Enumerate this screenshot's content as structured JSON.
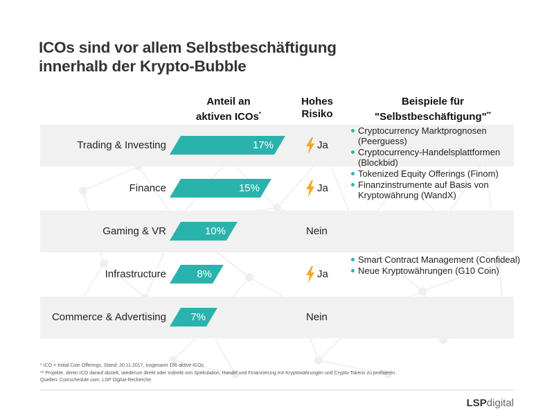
{
  "title": {
    "line1": "ICOs sind vor allem Selbstbeschäftigung",
    "line2": "innerhalb der Krypto-Bubble"
  },
  "headers": {
    "share_l1": "Anteil an",
    "share_l2": "aktiven ICOs",
    "share_mark": "*",
    "risk_l1": "Hohes",
    "risk_l2": "Risiko",
    "examples_l1": "Beispiele für",
    "examples_l2": "\"Selbstbeschäftigung\"",
    "examples_mark": "**"
  },
  "chart_data": {
    "type": "bar",
    "categories": [
      "Trading & Investing",
      "Finance",
      "Gaming & VR",
      "Infrastructure",
      "Commerce & Advertising"
    ],
    "values": [
      17,
      15,
      10,
      8,
      7
    ],
    "value_labels": [
      "17%",
      "15%",
      "10%",
      "8%",
      "7%"
    ],
    "unit": "%",
    "high_risk": [
      "Ja",
      "Ja",
      "Nein",
      "Ja",
      "Nein"
    ],
    "examples": [
      [
        "Cryptocurrency Marktprognosen (Peerguess)",
        "Cryptocurrency-Handelsplattformen (Blockbid)"
      ],
      [
        "Tokenized Equity Offerings (Finom)",
        "Finanzinstrumente auf Basis von Kryptowährung (WandX)"
      ],
      [],
      [
        "Smart Contract Management (Confideal)",
        "Neue Kryptowährungen (G10 Coin)"
      ],
      []
    ],
    "colors": {
      "bar": "#2ab3ac",
      "bolt": "#f5a623",
      "band": "#f1f1f1"
    }
  },
  "footnotes": [
    "*   ICO = Initial Coin Offerings, Stand: 20.11.2017, insgesamt 156 aktive ICOs",
    "** Projekte, deren ICO darauf abzielt, wiederum direkt oder indirekt von Spekulation, Handel und Finanzierung mit Kryptowährungen und Crypto-Tokens zu profitieren.",
    "Quellen: Coinschedule.com, LSP Digital-Recherche"
  ],
  "logo": {
    "bold": "LSP",
    "light": "digital"
  }
}
